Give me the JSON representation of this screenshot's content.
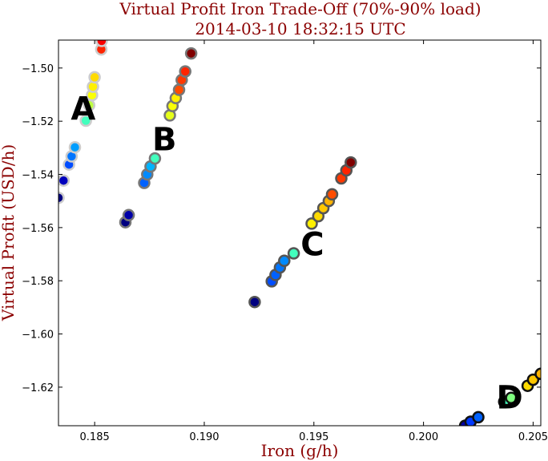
{
  "chart_data": {
    "type": "scatter",
    "title": "Virtual Profit Iron Trade-Off (70%-90% load)",
    "subtitle": "2014-03-10 18:32:15 UTC",
    "xlabel": "Iron (g/h)",
    "ylabel": "Virtual Profit (USD/h)",
    "xlim": [
      0.18335,
      0.20535
    ],
    "ylim": [
      -1.6345,
      -1.4895
    ],
    "xticks": [
      0.185,
      0.19,
      0.195,
      0.2,
      0.205
    ],
    "xtick_labels": [
      "0.185",
      "0.190",
      "0.195",
      "0.200",
      "0.205"
    ],
    "yticks": [
      -1.5,
      -1.52,
      -1.54,
      -1.56,
      -1.58,
      -1.6,
      -1.62
    ],
    "ytick_labels": [
      "−1.50",
      "−1.52",
      "−1.54",
      "−1.56",
      "−1.58",
      "−1.60",
      "−1.62"
    ],
    "grid": false,
    "colormap": "jet",
    "series": [
      {
        "name": "A",
        "edgecolor": "#cccccc",
        "points": [
          {
            "x": 0.18335,
            "y": -1.5488,
            "c": 0.0
          },
          {
            "x": 0.18358,
            "y": -1.5423,
            "c": 0.06
          },
          {
            "x": 0.18383,
            "y": -1.5363,
            "c": 0.2
          },
          {
            "x": 0.18395,
            "y": -1.5332,
            "c": 0.24
          },
          {
            "x": 0.1841,
            "y": -1.5298,
            "c": 0.28
          },
          {
            "x": 0.1846,
            "y": -1.5198,
            "c": 0.44
          },
          {
            "x": 0.18475,
            "y": -1.514,
            "c": 0.56
          },
          {
            "x": 0.18488,
            "y": -1.5102,
            "c": 0.62
          },
          {
            "x": 0.18492,
            "y": -1.507,
            "c": 0.64
          },
          {
            "x": 0.185,
            "y": -1.5035,
            "c": 0.66
          },
          {
            "x": 0.1853,
            "y": -1.493,
            "c": 0.84
          },
          {
            "x": 0.18532,
            "y": -1.4898,
            "c": 0.88
          }
        ]
      },
      {
        "name": "B",
        "edgecolor": "#777777",
        "points": [
          {
            "x": 0.1864,
            "y": -1.558,
            "c": 0.0
          },
          {
            "x": 0.18655,
            "y": -1.5553,
            "c": 0.04
          },
          {
            "x": 0.18726,
            "y": -1.5432,
            "c": 0.22
          },
          {
            "x": 0.1874,
            "y": -1.54,
            "c": 0.26
          },
          {
            "x": 0.18755,
            "y": -1.537,
            "c": 0.3
          },
          {
            "x": 0.18775,
            "y": -1.534,
            "c": 0.44
          },
          {
            "x": 0.18843,
            "y": -1.5178,
            "c": 0.6
          },
          {
            "x": 0.18855,
            "y": -1.5143,
            "c": 0.62
          },
          {
            "x": 0.1887,
            "y": -1.5113,
            "c": 0.64
          },
          {
            "x": 0.18885,
            "y": -1.5082,
            "c": 0.8
          },
          {
            "x": 0.18897,
            "y": -1.5045,
            "c": 0.82
          },
          {
            "x": 0.18913,
            "y": -1.5013,
            "c": 0.84
          },
          {
            "x": 0.1894,
            "y": -1.4945,
            "c": 1.0
          }
        ]
      },
      {
        "name": "C",
        "edgecolor": "#555555",
        "points": [
          {
            "x": 0.1923,
            "y": -1.588,
            "c": 0.0
          },
          {
            "x": 0.19308,
            "y": -1.5802,
            "c": 0.2
          },
          {
            "x": 0.19325,
            "y": -1.5778,
            "c": 0.22
          },
          {
            "x": 0.19345,
            "y": -1.575,
            "c": 0.24
          },
          {
            "x": 0.19365,
            "y": -1.5725,
            "c": 0.26
          },
          {
            "x": 0.19408,
            "y": -1.5697,
            "c": 0.44
          },
          {
            "x": 0.1949,
            "y": -1.5585,
            "c": 0.64
          },
          {
            "x": 0.1952,
            "y": -1.5557,
            "c": 0.66
          },
          {
            "x": 0.19543,
            "y": -1.5527,
            "c": 0.68
          },
          {
            "x": 0.19568,
            "y": -1.55,
            "c": 0.7
          },
          {
            "x": 0.19583,
            "y": -1.5475,
            "c": 0.8
          },
          {
            "x": 0.19625,
            "y": -1.5415,
            "c": 0.82
          },
          {
            "x": 0.19648,
            "y": -1.5385,
            "c": 0.84
          },
          {
            "x": 0.19668,
            "y": -1.5355,
            "c": 1.0
          }
        ]
      },
      {
        "name": "D",
        "edgecolor": "#111111",
        "points": [
          {
            "x": 0.2019,
            "y": -1.6345,
            "c": 0.04
          },
          {
            "x": 0.20215,
            "y": -1.633,
            "c": 0.18
          },
          {
            "x": 0.2025,
            "y": -1.6313,
            "c": 0.22
          },
          {
            "x": 0.20368,
            "y": -1.6255,
            "c": 0.44
          },
          {
            "x": 0.204,
            "y": -1.624,
            "c": 0.5
          },
          {
            "x": 0.20475,
            "y": -1.6195,
            "c": 0.66
          },
          {
            "x": 0.205,
            "y": -1.6172,
            "c": 0.68
          },
          {
            "x": 0.20535,
            "y": -1.615,
            "c": 0.7
          }
        ]
      }
    ],
    "annotations": [
      {
        "text": "A",
        "x": 0.18448,
        "y": -1.5195
      },
      {
        "text": "B",
        "x": 0.18818,
        "y": -1.531
      },
      {
        "text": "C",
        "x": 0.19493,
        "y": -1.5705
      },
      {
        "text": "D",
        "x": 0.20393,
        "y": -1.628
      }
    ]
  }
}
